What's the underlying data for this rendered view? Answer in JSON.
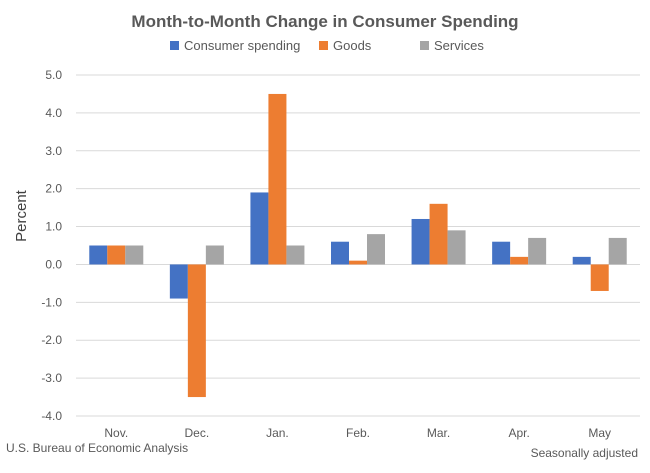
{
  "chart_data": {
    "type": "bar",
    "title": "Month-to-Month Change in Consumer Spending",
    "ylabel": "Percent",
    "xlabel": "",
    "categories": [
      "Nov.",
      "Dec.",
      "Jan.",
      "Feb.",
      "Mar.",
      "Apr.",
      "May"
    ],
    "series": [
      {
        "name": "Consumer spending",
        "color": "#4472C4",
        "values": [
          0.5,
          -0.9,
          1.9,
          0.6,
          1.2,
          0.6,
          0.2
        ]
      },
      {
        "name": "Goods",
        "color": "#ED7D31",
        "values": [
          0.5,
          -3.5,
          4.5,
          0.1,
          1.6,
          0.2,
          -0.7
        ]
      },
      {
        "name": "Services",
        "color": "#A5A5A5",
        "values": [
          0.5,
          0.5,
          0.5,
          0.8,
          0.9,
          0.7,
          0.7
        ]
      }
    ],
    "ylim": [
      -4.0,
      5.0
    ],
    "yticks": [
      "5.0",
      "4.0",
      "3.0",
      "2.0",
      "1.0",
      "0.0",
      "-1.0",
      "-2.0",
      "-3.0",
      "-4.0"
    ],
    "grid": true,
    "legend_position": "top"
  },
  "footer": {
    "source": "U.S. Bureau of Economic Analysis",
    "note": "Seasonally adjusted"
  }
}
